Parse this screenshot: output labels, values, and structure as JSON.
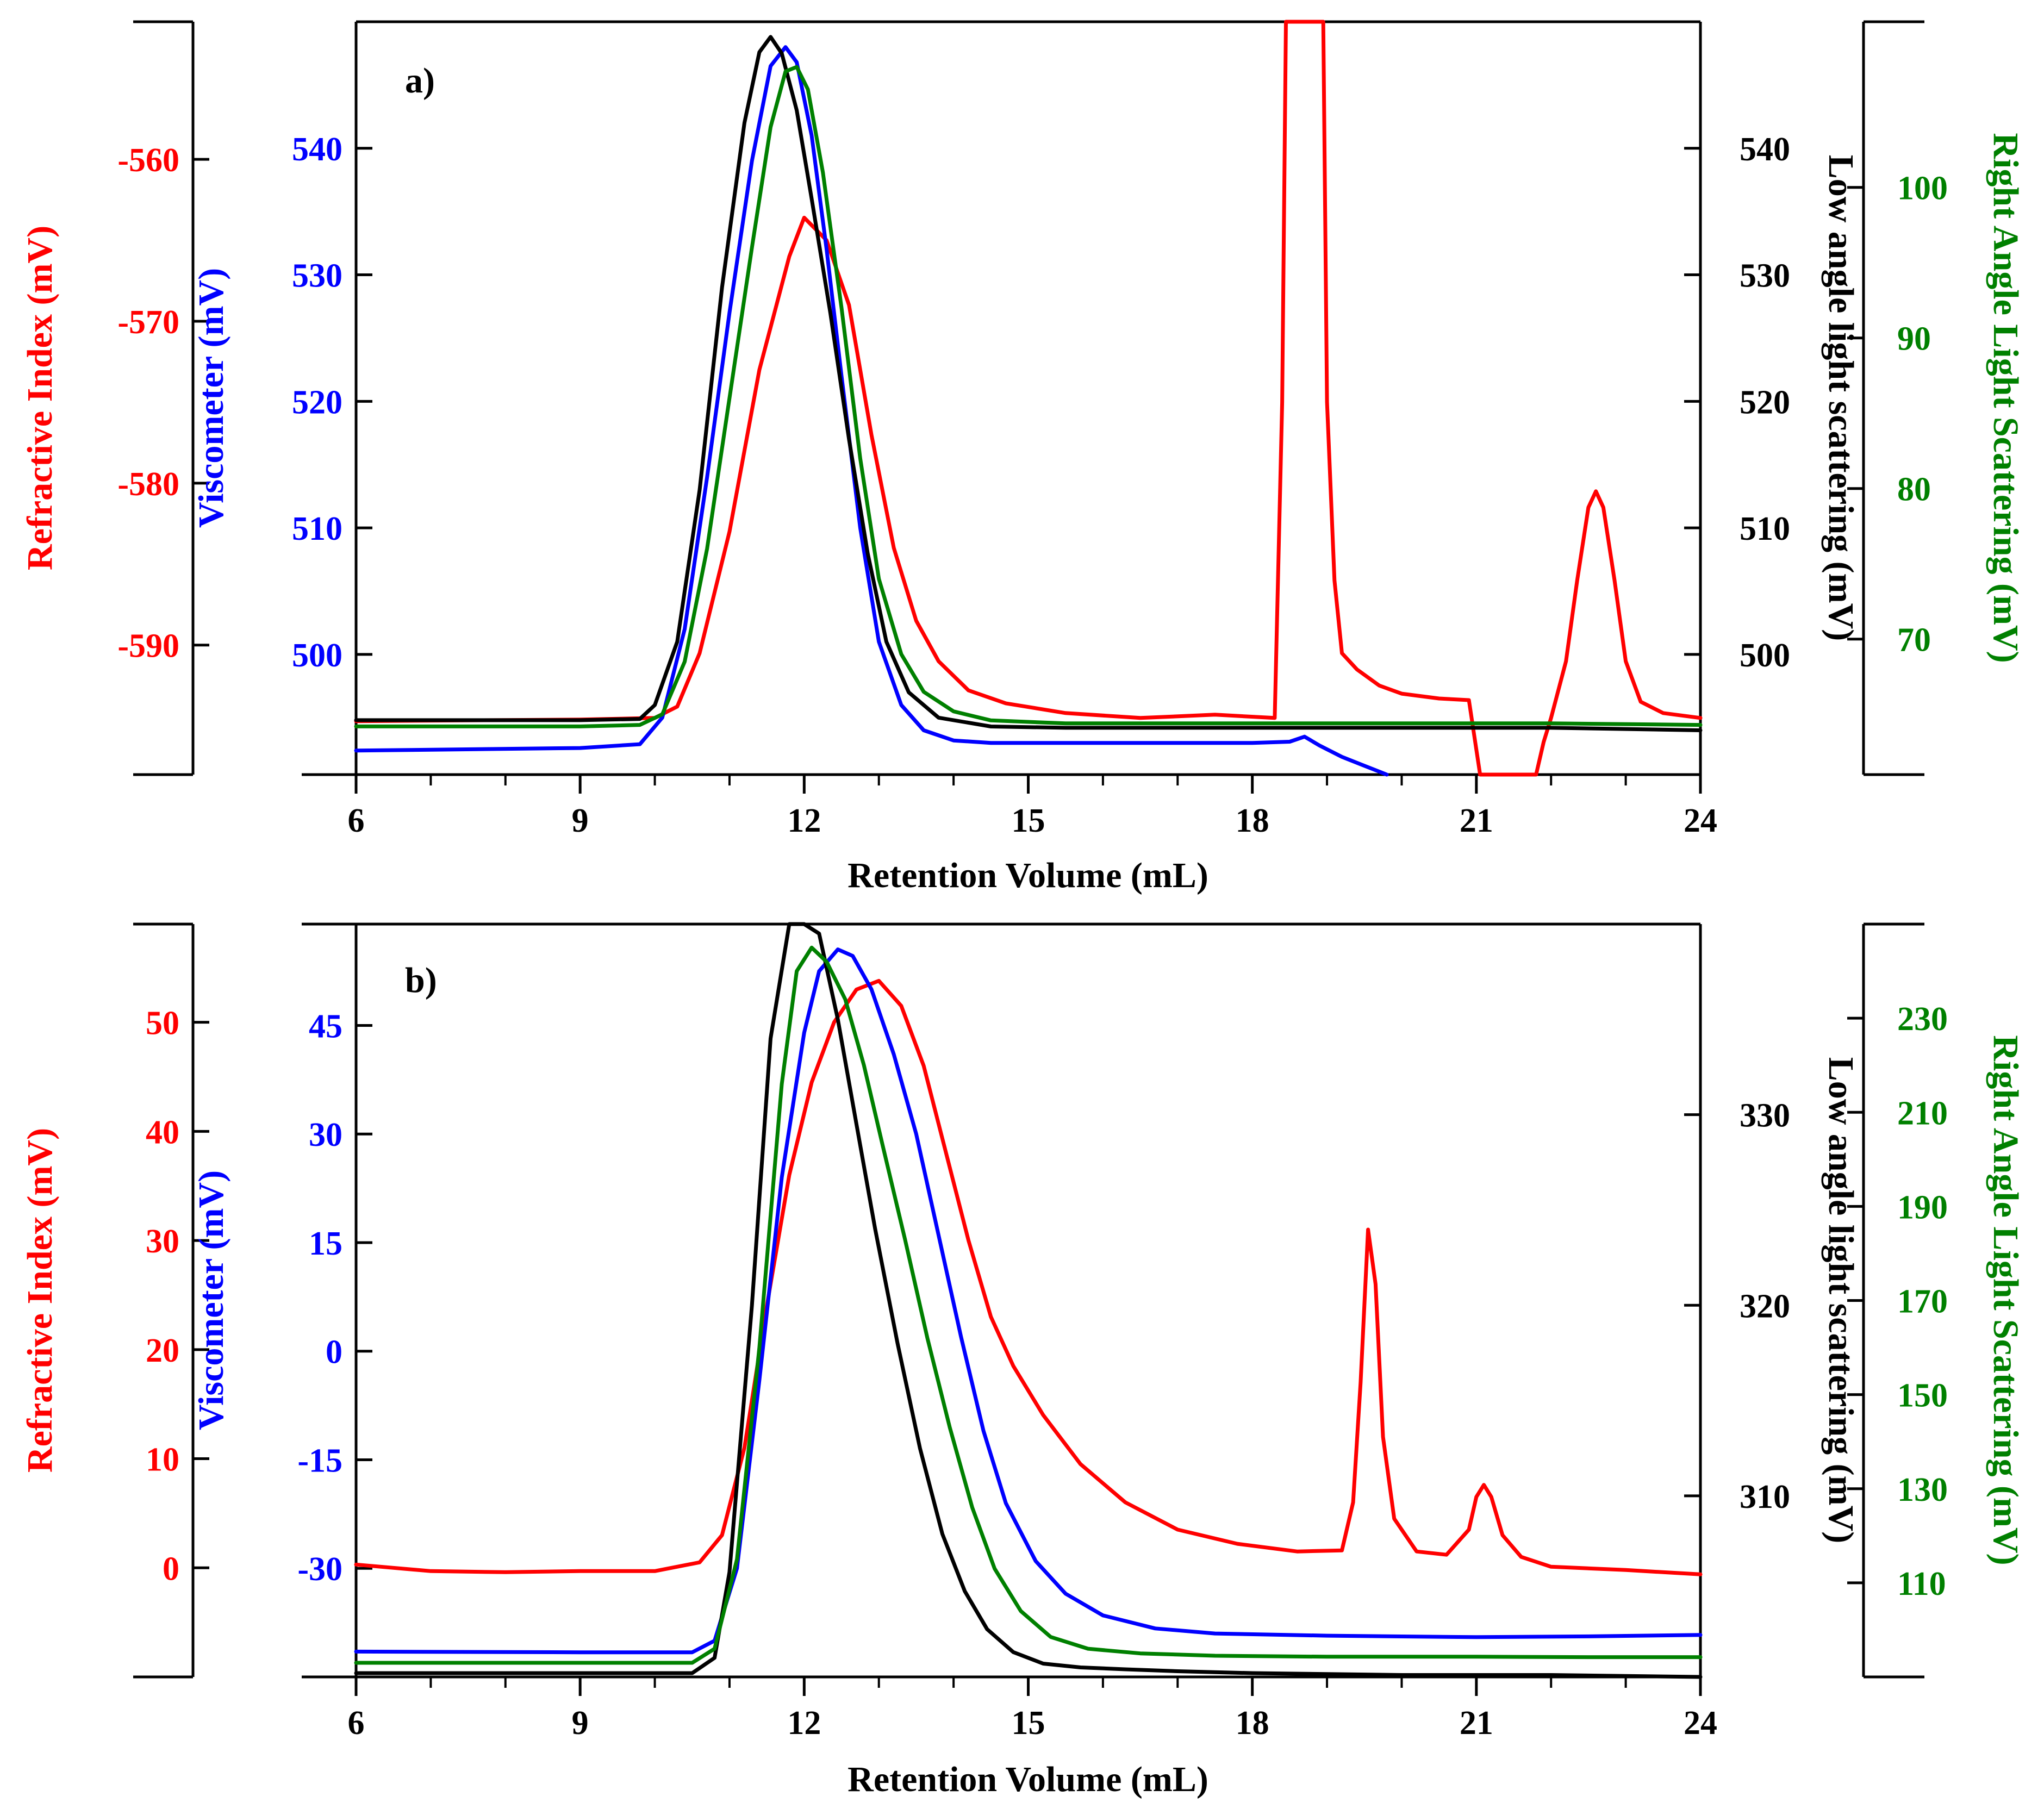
{
  "chart_data": [
    {
      "type": "line",
      "label": "a)",
      "xlabel": "Retention Volume (mL)",
      "xlim": [
        6,
        24
      ],
      "x_ticks": [
        "6",
        "9",
        "12",
        "15",
        "18",
        "21",
        "24"
      ],
      "axes": {
        "ri": {
          "label": "Refractive Index (mV)",
          "color": "#ff0000",
          "lim": [
            -598,
            -551.5
          ],
          "ticks": [
            "-560",
            "-570",
            "-580",
            "-590"
          ],
          "tick_values": [
            -560,
            -570,
            -580,
            -590
          ]
        },
        "visc": {
          "label": "Viscometer (mV)",
          "color": "#0000ff",
          "lim": [
            490.5,
            550
          ],
          "ticks": [
            "540",
            "530",
            "520",
            "510",
            "500"
          ],
          "tick_values": [
            540,
            530,
            520,
            510,
            500
          ]
        },
        "lals": {
          "label": "Low angle light scattering (mV)",
          "color": "#000000",
          "lim": [
            490.5,
            550
          ],
          "ticks": [
            "540",
            "530",
            "520",
            "510",
            "500"
          ],
          "tick_values": [
            540,
            530,
            520,
            510,
            500
          ]
        },
        "rals": {
          "label": "Right Angle Light Scattering (mV)",
          "color": "#008000",
          "lim": [
            61,
            111
          ],
          "ticks": [
            "100",
            "90",
            "80",
            "70"
          ],
          "tick_values": [
            100,
            90,
            80,
            70
          ]
        }
      },
      "series": [
        {
          "name": "Refractive Index",
          "axis": "ri",
          "color": "#ff0000",
          "x": [
            6,
            9,
            10,
            10.3,
            10.6,
            11,
            11.4,
            11.8,
            12.0,
            12.3,
            12.6,
            12.9,
            13.2,
            13.5,
            13.8,
            14.2,
            14.7,
            15.5,
            16.5,
            17.5,
            18.3,
            18.4,
            18.45,
            18.5,
            18.55,
            18.6,
            18.7,
            18.8,
            18.85,
            18.9,
            18.95,
            19.0,
            19.1,
            19.2,
            19.4,
            19.7,
            20.0,
            20.5,
            20.9,
            21.05,
            21.15,
            21.8,
            21.9,
            22.0,
            22.2,
            22.35,
            22.5,
            22.6,
            22.7,
            22.85,
            23.0,
            23.2,
            23.5,
            24
          ],
          "values": [
            -594.7,
            -594.6,
            -594.5,
            -593.8,
            -590.5,
            -583,
            -573,
            -566,
            -563.6,
            -565,
            -569,
            -577,
            -584,
            -588.5,
            -591,
            -592.8,
            -593.6,
            -594.2,
            -594.5,
            -594.3,
            -594.5,
            -575,
            -551,
            -551,
            -551,
            -551,
            -551,
            -551,
            -551,
            -551,
            -551,
            -575,
            -586,
            -590.5,
            -591.5,
            -592.5,
            -593,
            -593.3,
            -593.4,
            -598,
            -598,
            -598,
            -596,
            -594.5,
            -591,
            -586,
            -581.5,
            -580.5,
            -581.5,
            -586,
            -591,
            -593.5,
            -594.2,
            -594.5
          ]
        },
        {
          "name": "Viscometer",
          "axis": "visc",
          "color": "#0000ff",
          "x": [
            6,
            9,
            9.8,
            10.1,
            10.4,
            10.7,
            11.0,
            11.3,
            11.55,
            11.75,
            11.9,
            12.1,
            12.3,
            12.5,
            12.75,
            13.0,
            13.3,
            13.6,
            14.0,
            14.5,
            15.5,
            17.0,
            18.0,
            18.5,
            18.7,
            18.9,
            19.2,
            19.5,
            19.8
          ],
          "values": [
            492.4,
            492.6,
            492.9,
            495,
            502,
            514,
            527,
            539,
            546.5,
            548,
            546.8,
            541,
            532,
            522,
            510,
            501,
            496,
            494,
            493.2,
            493,
            493,
            493,
            493,
            493.1,
            493.5,
            492.8,
            491.9,
            491.2,
            490.5
          ]
        },
        {
          "name": "Low angle light scattering",
          "axis": "lals",
          "color": "#000000",
          "x": [
            6,
            9,
            9.8,
            10.0,
            10.3,
            10.6,
            10.9,
            11.2,
            11.4,
            11.55,
            11.7,
            11.9,
            12.1,
            12.35,
            12.6,
            12.85,
            13.1,
            13.4,
            13.8,
            14.5,
            15.5,
            17,
            18.5,
            20,
            22,
            24
          ],
          "values": [
            494.8,
            494.8,
            494.9,
            496,
            501,
            513,
            529,
            542,
            547.6,
            548.8,
            547.5,
            543,
            536,
            527,
            517,
            508,
            501,
            497,
            495,
            494.3,
            494.2,
            494.2,
            494.2,
            494.2,
            494.2,
            494.0
          ]
        },
        {
          "name": "Right Angle Light Scattering",
          "axis": "rals",
          "color": "#008000",
          "x": [
            6,
            9,
            9.8,
            10.1,
            10.4,
            10.7,
            11.0,
            11.3,
            11.55,
            11.75,
            11.9,
            12.05,
            12.25,
            12.5,
            12.75,
            13.0,
            13.3,
            13.6,
            14.0,
            14.5,
            15.5,
            17,
            18.5,
            20,
            22,
            24
          ],
          "values": [
            64.2,
            64.2,
            64.3,
            65,
            68.5,
            76,
            86,
            96,
            104,
            107.7,
            108,
            106.5,
            101,
            92,
            82,
            74,
            69,
            66.5,
            65.2,
            64.6,
            64.4,
            64.4,
            64.4,
            64.4,
            64.4,
            64.3
          ]
        }
      ]
    },
    {
      "type": "line",
      "label": "b)",
      "xlabel": "Retention Volume (mL)",
      "xlim": [
        6,
        24
      ],
      "x_ticks": [
        "6",
        "9",
        "12",
        "15",
        "18",
        "21",
        "24"
      ],
      "axes": {
        "ri": {
          "label": "Refractive Index (mV)",
          "color": "#ff0000",
          "lim": [
            -10,
            59
          ],
          "ticks": [
            "50",
            "40",
            "30",
            "20",
            "10",
            "0"
          ],
          "tick_values": [
            50,
            40,
            30,
            20,
            10,
            0
          ]
        },
        "visc": {
          "label": "Viscometer (mV)",
          "color": "#0000ff",
          "lim": [
            -45,
            59
          ],
          "ticks": [
            "45",
            "30",
            "15",
            "0",
            "-15",
            "-30"
          ],
          "tick_values": [
            45,
            30,
            15,
            0,
            -15,
            -30
          ]
        },
        "lals": {
          "label": "Low angle light scattering (mV)",
          "color": "#000000",
          "lim": [
            300.5,
            340
          ],
          "ticks": [
            "330",
            "320",
            "310"
          ],
          "tick_values": [
            330,
            320,
            310
          ]
        },
        "rals": {
          "label": "Right Angle Light Scattering (mV)",
          "color": "#008000",
          "lim": [
            90,
            250
          ],
          "ticks": [
            "230",
            "210",
            "190",
            "170",
            "150",
            "130",
            "110"
          ],
          "tick_values": [
            230,
            210,
            190,
            170,
            150,
            130,
            110
          ]
        }
      },
      "series": [
        {
          "name": "Refractive Index",
          "axis": "ri",
          "color": "#ff0000",
          "x": [
            6,
            6.5,
            7,
            8,
            9,
            10,
            10.6,
            10.9,
            11.2,
            11.5,
            11.8,
            12.1,
            12.4,
            12.7,
            13.0,
            13.3,
            13.6,
            13.9,
            14.2,
            14.5,
            14.8,
            15.2,
            15.7,
            16.3,
            17,
            17.8,
            18.6,
            19.2,
            19.35,
            19.45,
            19.55,
            19.65,
            19.75,
            19.9,
            20.2,
            20.6,
            20.9,
            21.0,
            21.1,
            21.2,
            21.35,
            21.6,
            22,
            23,
            24
          ],
          "values": [
            0.3,
            0,
            -0.3,
            -0.4,
            -0.3,
            -0.3,
            0.5,
            3,
            11,
            24,
            36,
            44.5,
            50,
            53,
            53.8,
            51.5,
            46,
            38,
            30,
            23,
            18.5,
            14,
            9.5,
            6,
            3.5,
            2.2,
            1.5,
            1.6,
            6,
            17,
            31,
            26,
            12,
            4.5,
            1.5,
            1.2,
            3.5,
            6.5,
            7.6,
            6.5,
            3,
            1,
            0.1,
            -0.2,
            -0.6
          ]
        },
        {
          "name": "Viscometer",
          "axis": "visc",
          "color": "#0000ff",
          "x": [
            6,
            9,
            10.5,
            10.8,
            11.1,
            11.4,
            11.7,
            12.0,
            12.2,
            12.45,
            12.65,
            12.9,
            13.2,
            13.5,
            13.8,
            14.1,
            14.4,
            14.7,
            15.1,
            15.5,
            16,
            16.7,
            17.5,
            19,
            21,
            22.5,
            24
          ],
          "values": [
            -41.5,
            -41.6,
            -41.6,
            -40,
            -30,
            -4,
            24,
            44,
            52.5,
            55.5,
            54.6,
            50,
            41,
            30,
            16,
            2,
            -11,
            -21,
            -29,
            -33.5,
            -36.5,
            -38.3,
            -39,
            -39.3,
            -39.5,
            -39.4,
            -39.2
          ]
        },
        {
          "name": "Low angle light scattering",
          "axis": "lals",
          "color": "#000000",
          "x": [
            6,
            9,
            10.5,
            10.8,
            11.0,
            11.3,
            11.55,
            11.8,
            12.0,
            12.2,
            12.45,
            12.7,
            12.95,
            13.25,
            13.55,
            13.85,
            14.15,
            14.45,
            14.8,
            15.2,
            15.7,
            16.3,
            17,
            18,
            20,
            22,
            24
          ],
          "values": [
            300.7,
            300.7,
            300.7,
            301.5,
            306,
            320,
            334,
            341,
            341.5,
            339.5,
            335,
            329.5,
            324,
            318,
            312.5,
            308,
            305,
            303,
            301.8,
            301.2,
            301,
            300.9,
            300.8,
            300.7,
            300.6,
            300.6,
            300.5
          ]
        },
        {
          "name": "Right Angle Light Scattering",
          "axis": "rals",
          "color": "#008000",
          "x": [
            6,
            9,
            10.5,
            10.8,
            11.1,
            11.4,
            11.7,
            11.9,
            12.1,
            12.3,
            12.55,
            12.8,
            13.05,
            13.35,
            13.65,
            13.95,
            14.25,
            14.55,
            14.9,
            15.3,
            15.8,
            16.5,
            17.5,
            19,
            21,
            22.5,
            24
          ],
          "values": [
            93,
            93,
            93,
            96,
            115,
            160,
            216,
            240,
            245,
            242,
            234,
            220,
            203,
            183,
            162,
            143,
            126,
            113,
            104,
            98.5,
            96,
            95,
            94.5,
            94.3,
            94.3,
            94.2,
            94.2
          ]
        }
      ]
    }
  ]
}
